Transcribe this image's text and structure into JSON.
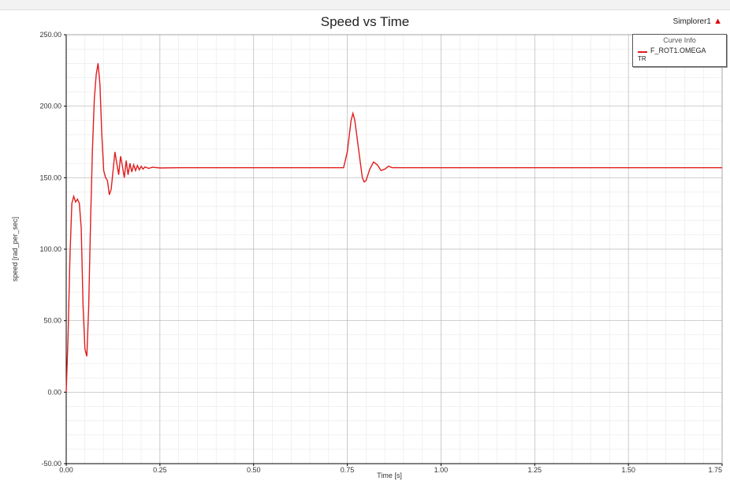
{
  "window": {
    "design_name": "Simplorer1",
    "design_mark": "▲"
  },
  "legend": {
    "header": "Curve Info",
    "tag": "TR"
  },
  "colors": {
    "series": "#e11d1d",
    "grid_major": "#b5b5b5",
    "grid_minor": "#e3e3e3",
    "axis": "#000000"
  },
  "chart_data": {
    "type": "line",
    "title": "Speed vs Time",
    "xlabel": "Time [s]",
    "ylabel": "speed [rad_per_sec]",
    "xlim": [
      0,
      1.75
    ],
    "ylim": [
      -50,
      250
    ],
    "xticks": [
      "0.00",
      "0.25",
      "0.50",
      "0.75",
      "1.00",
      "1.25",
      "1.50",
      "1.75"
    ],
    "yticks": [
      "250.00",
      "200.00",
      "150.00",
      "100.00",
      "50.00",
      "0.00",
      "-50.00"
    ],
    "grid": true,
    "legend_position": "top-right",
    "series": [
      {
        "name": "F_ROT1.OMEGA",
        "points": [
          [
            0.0,
            0
          ],
          [
            0.005,
            40
          ],
          [
            0.01,
            95
          ],
          [
            0.015,
            132
          ],
          [
            0.02,
            137
          ],
          [
            0.025,
            133
          ],
          [
            0.03,
            135
          ],
          [
            0.035,
            132
          ],
          [
            0.04,
            115
          ],
          [
            0.045,
            60
          ],
          [
            0.05,
            30
          ],
          [
            0.055,
            25
          ],
          [
            0.06,
            60
          ],
          [
            0.065,
            120
          ],
          [
            0.07,
            170
          ],
          [
            0.075,
            205
          ],
          [
            0.08,
            222
          ],
          [
            0.085,
            230
          ],
          [
            0.09,
            215
          ],
          [
            0.095,
            180
          ],
          [
            0.1,
            155
          ],
          [
            0.105,
            150
          ],
          [
            0.11,
            148
          ],
          [
            0.115,
            138
          ],
          [
            0.12,
            142
          ],
          [
            0.125,
            155
          ],
          [
            0.13,
            168
          ],
          [
            0.135,
            160
          ],
          [
            0.14,
            152
          ],
          [
            0.145,
            165
          ],
          [
            0.15,
            158
          ],
          [
            0.155,
            150
          ],
          [
            0.16,
            162
          ],
          [
            0.165,
            152
          ],
          [
            0.17,
            160
          ],
          [
            0.175,
            154
          ],
          [
            0.18,
            159
          ],
          [
            0.185,
            155
          ],
          [
            0.19,
            158.5
          ],
          [
            0.195,
            155.5
          ],
          [
            0.2,
            158
          ],
          [
            0.205,
            156
          ],
          [
            0.21,
            157.5
          ],
          [
            0.22,
            156.5
          ],
          [
            0.23,
            157.3
          ],
          [
            0.25,
            156.8
          ],
          [
            0.3,
            157
          ],
          [
            0.5,
            157
          ],
          [
            0.7,
            157
          ],
          [
            0.74,
            157
          ],
          [
            0.75,
            168
          ],
          [
            0.76,
            190
          ],
          [
            0.765,
            195
          ],
          [
            0.77,
            190
          ],
          [
            0.78,
            170
          ],
          [
            0.79,
            150
          ],
          [
            0.795,
            147
          ],
          [
            0.8,
            148
          ],
          [
            0.81,
            156
          ],
          [
            0.82,
            161
          ],
          [
            0.83,
            159
          ],
          [
            0.84,
            155
          ],
          [
            0.85,
            156
          ],
          [
            0.86,
            158
          ],
          [
            0.87,
            157
          ],
          [
            0.9,
            157
          ],
          [
            1.0,
            157
          ],
          [
            1.25,
            157
          ],
          [
            1.5,
            157
          ],
          [
            1.75,
            157
          ]
        ]
      }
    ]
  }
}
